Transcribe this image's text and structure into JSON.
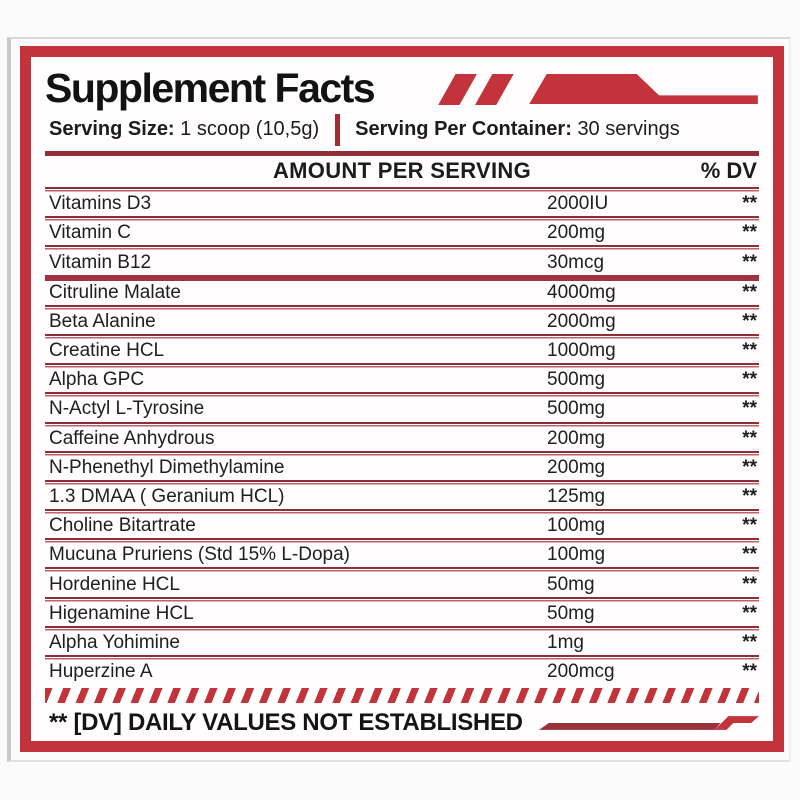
{
  "label": {
    "title": "Supplement Facts",
    "serving": {
      "size_label": "Serving Size:",
      "size_value": "1 scoop (10,5g)",
      "container_label": "Serving Per Container:",
      "container_value": "30 servings"
    },
    "table": {
      "amount_header": "AMOUNT PER SERVING",
      "dv_header": "% DV",
      "sections": [
        {
          "name": "vitamins",
          "rows": [
            {
              "name": "Vitamins D3",
              "amount": "2000IU",
              "dv": "**"
            },
            {
              "name": "Vitamin C",
              "amount": "200mg",
              "dv": "**"
            },
            {
              "name": "Vitamin B12",
              "amount": "30mcg",
              "dv": "**"
            }
          ]
        },
        {
          "name": "active-ingredients",
          "rows": [
            {
              "name": "Citruline Malate",
              "amount": "4000mg",
              "dv": "**"
            },
            {
              "name": "Beta Alanine",
              "amount": "2000mg",
              "dv": "**"
            },
            {
              "name": "Creatine HCL",
              "amount": "1000mg",
              "dv": "**"
            },
            {
              "name": "Alpha GPC",
              "amount": "500mg",
              "dv": "**"
            },
            {
              "name": "N-Actyl L-Tyrosine",
              "amount": "500mg",
              "dv": "**"
            },
            {
              "name": "Caffeine Anhydrous",
              "amount": "200mg",
              "dv": "**"
            },
            {
              "name": "N-Phenethyl Dimethylamine",
              "amount": "200mg",
              "dv": "**"
            },
            {
              "name": "1.3 DMAA ( Geranium HCL)",
              "amount": "125mg",
              "dv": "**"
            },
            {
              "name": "Choline Bitartrate",
              "amount": "100mg",
              "dv": "**"
            },
            {
              "name": "Mucuna Pruriens (Std 15% L-Dopa)",
              "amount": "100mg",
              "dv": "**"
            },
            {
              "name": "Hordenine HCL",
              "amount": "50mg",
              "dv": "**"
            },
            {
              "name": "Higenamine HCL",
              "amount": "50mg",
              "dv": "**"
            },
            {
              "name": "Alpha Yohimine",
              "amount": "1mg",
              "dv": "**"
            },
            {
              "name": "Huperzine A",
              "amount": "200mcg",
              "dv": "**"
            }
          ]
        }
      ]
    },
    "footnote": "** [DV] DAILY VALUES NOT ESTABLISHED",
    "colors": {
      "red": "#c2333b",
      "maroon": "#8e2f36",
      "divider_light": "#bf6167",
      "text": "#1c1c1c"
    }
  }
}
